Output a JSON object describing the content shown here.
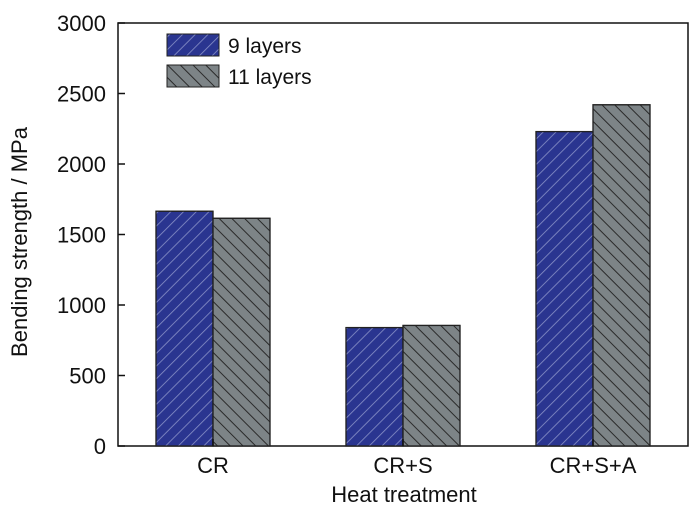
{
  "chart_data": {
    "type": "bar",
    "categories": [
      "CR",
      "CR+S",
      "CR+S+A"
    ],
    "series": [
      {
        "name": "9 layers",
        "values": [
          1665,
          840,
          2230
        ],
        "color": "#2a3590",
        "hatch": "forward-diagonal"
      },
      {
        "name": "11 layers",
        "values": [
          1615,
          855,
          2420
        ],
        "color": "#7d8487",
        "hatch": "back-diagonal"
      }
    ],
    "xlabel": "Heat treatment",
    "ylabel": "Bending strength / MPa",
    "ylim": [
      0,
      3000
    ],
    "yticks": [
      0,
      500,
      1000,
      1500,
      2000,
      2500,
      3000
    ],
    "grid": false,
    "legend_position": "top-left"
  }
}
